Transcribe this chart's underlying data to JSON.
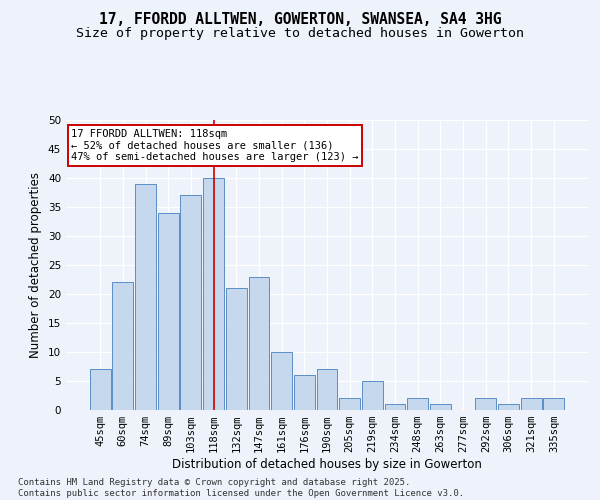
{
  "title_line1": "17, FFORDD ALLTWEN, GOWERTON, SWANSEA, SA4 3HG",
  "title_line2": "Size of property relative to detached houses in Gowerton",
  "xlabel": "Distribution of detached houses by size in Gowerton",
  "ylabel": "Number of detached properties",
  "categories": [
    "45sqm",
    "60sqm",
    "74sqm",
    "89sqm",
    "103sqm",
    "118sqm",
    "132sqm",
    "147sqm",
    "161sqm",
    "176sqm",
    "190sqm",
    "205sqm",
    "219sqm",
    "234sqm",
    "248sqm",
    "263sqm",
    "277sqm",
    "292sqm",
    "306sqm",
    "321sqm",
    "335sqm"
  ],
  "values": [
    7,
    22,
    39,
    34,
    37,
    40,
    21,
    23,
    10,
    6,
    7,
    2,
    5,
    1,
    2,
    1,
    0,
    2,
    1,
    2,
    2
  ],
  "bar_color": "#c5d8ee",
  "bar_edge_color": "#5b8ec4",
  "highlight_index": 5,
  "vline_color": "#cc0000",
  "annotation_text": "17 FFORDD ALLTWEN: 118sqm\n← 52% of detached houses are smaller (136)\n47% of semi-detached houses are larger (123) →",
  "annotation_box_color": "#ffffff",
  "annotation_border_color": "#cc0000",
  "ylim": [
    0,
    50
  ],
  "yticks": [
    0,
    5,
    10,
    15,
    20,
    25,
    30,
    35,
    40,
    45,
    50
  ],
  "background_color": "#eef2fa",
  "grid_color": "#ffffff",
  "footer_line1": "Contains HM Land Registry data © Crown copyright and database right 2025.",
  "footer_line2": "Contains public sector information licensed under the Open Government Licence v3.0.",
  "title_fontsize": 10.5,
  "subtitle_fontsize": 9.5,
  "axis_label_fontsize": 8.5,
  "tick_fontsize": 7.5,
  "annotation_fontsize": 7.5,
  "footer_fontsize": 6.5
}
